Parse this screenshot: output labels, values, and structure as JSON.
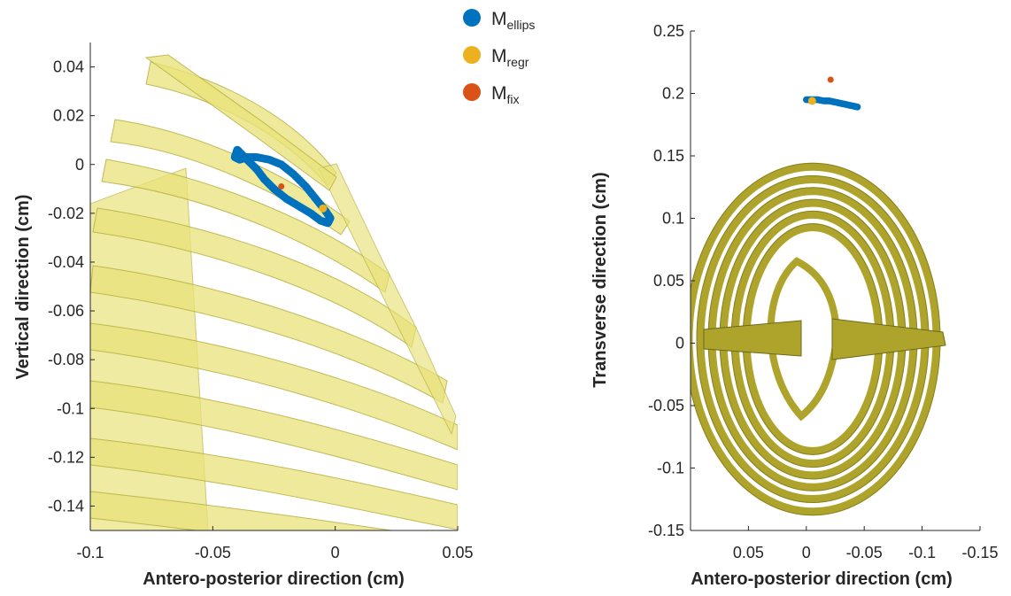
{
  "colors": {
    "ellips": "#0072BD",
    "regr": "#EDB120",
    "fix": "#D95319",
    "bone_light": "#e8e27a",
    "bone_dark": "#8a8420",
    "axis": "#262626"
  },
  "legend": {
    "placement": "top-center",
    "entries": [
      {
        "base": "M",
        "sub": "ellips",
        "color_key": "ellips"
      },
      {
        "base": "M",
        "sub": "regr",
        "color_key": "regr"
      },
      {
        "base": "M",
        "sub": "fix",
        "color_key": "fix"
      }
    ]
  },
  "chart_data": [
    {
      "type": "scatter",
      "xlabel": "Antero-posterior direction (cm)",
      "ylabel": "Vertical direction (cm)",
      "xlim": [
        -0.1,
        0.05
      ],
      "ylim": [
        -0.15,
        0.05
      ],
      "xticks": [
        -0.1,
        -0.05,
        0,
        0.05
      ],
      "xtick_labels": [
        "-0.1",
        "-0.05",
        "0",
        "0.05"
      ],
      "yticks": [
        0.04,
        0.02,
        0,
        -0.02,
        -0.04,
        -0.06,
        -0.08,
        -0.1,
        -0.12,
        -0.14
      ],
      "ytick_labels": [
        "0.04",
        "0.02",
        "0",
        "-0.02",
        "-0.04",
        "-0.06",
        "-0.08",
        "-0.1",
        "-0.12",
        "-0.14"
      ],
      "background": "rib cage lateral view",
      "series": [
        {
          "name_key": "ellips",
          "color_key": "ellips",
          "x": [
            -0.04,
            -0.041,
            -0.039,
            -0.036,
            -0.032,
            -0.027,
            -0.022,
            -0.017,
            -0.012,
            -0.008,
            -0.004,
            -0.002,
            -0.003,
            -0.006,
            -0.01,
            -0.015,
            -0.02,
            -0.025,
            -0.029,
            -0.032,
            -0.035,
            -0.037,
            -0.039,
            -0.04
          ],
          "y": [
            0.006,
            0.003,
            0.002,
            0.003,
            0.003,
            0.002,
            0.0,
            -0.004,
            -0.009,
            -0.014,
            -0.019,
            -0.022,
            -0.024,
            -0.023,
            -0.02,
            -0.017,
            -0.014,
            -0.01,
            -0.006,
            -0.002,
            0.001,
            0.003,
            0.005,
            0.006
          ]
        },
        {
          "name_key": "regr",
          "color_key": "regr",
          "x": [
            -0.005
          ],
          "y": [
            -0.018
          ]
        },
        {
          "name_key": "fix",
          "color_key": "fix",
          "x": [
            -0.022
          ],
          "y": [
            -0.009
          ]
        }
      ]
    },
    {
      "type": "scatter",
      "xlabel": "Antero-posterior direction (cm)",
      "ylabel": "Transverse direction (cm)",
      "xlim": [
        0.1,
        -0.15
      ],
      "ylim": [
        -0.15,
        0.25
      ],
      "xreversed": true,
      "xticks": [
        0.05,
        0,
        -0.05,
        -0.1,
        -0.15
      ],
      "xtick_labels": [
        "0.05",
        "0",
        "-0.05",
        "-0.1",
        "-0.15"
      ],
      "yticks": [
        0.25,
        0.2,
        0.15,
        0.1,
        0.05,
        0,
        -0.05,
        -0.1,
        -0.15
      ],
      "ytick_labels": [
        "0.25",
        "0.2",
        "0.15",
        "0.1",
        "0.05",
        "0",
        "-0.05",
        "-0.1",
        "-0.15"
      ],
      "background": "rib cage top view",
      "series": [
        {
          "name_key": "ellips",
          "color_key": "ellips",
          "x": [
            0.0,
            -0.005,
            -0.01,
            -0.015,
            -0.02,
            -0.025,
            -0.03,
            -0.035,
            -0.04,
            -0.045
          ],
          "y": [
            0.195,
            0.195,
            0.195,
            0.194,
            0.194,
            0.193,
            0.192,
            0.191,
            0.19,
            0.189
          ]
        },
        {
          "name_key": "regr",
          "color_key": "regr",
          "x": [
            -0.005
          ],
          "y": [
            0.194
          ]
        },
        {
          "name_key": "fix",
          "color_key": "fix",
          "x": [
            -0.021
          ],
          "y": [
            0.211
          ]
        }
      ]
    }
  ]
}
